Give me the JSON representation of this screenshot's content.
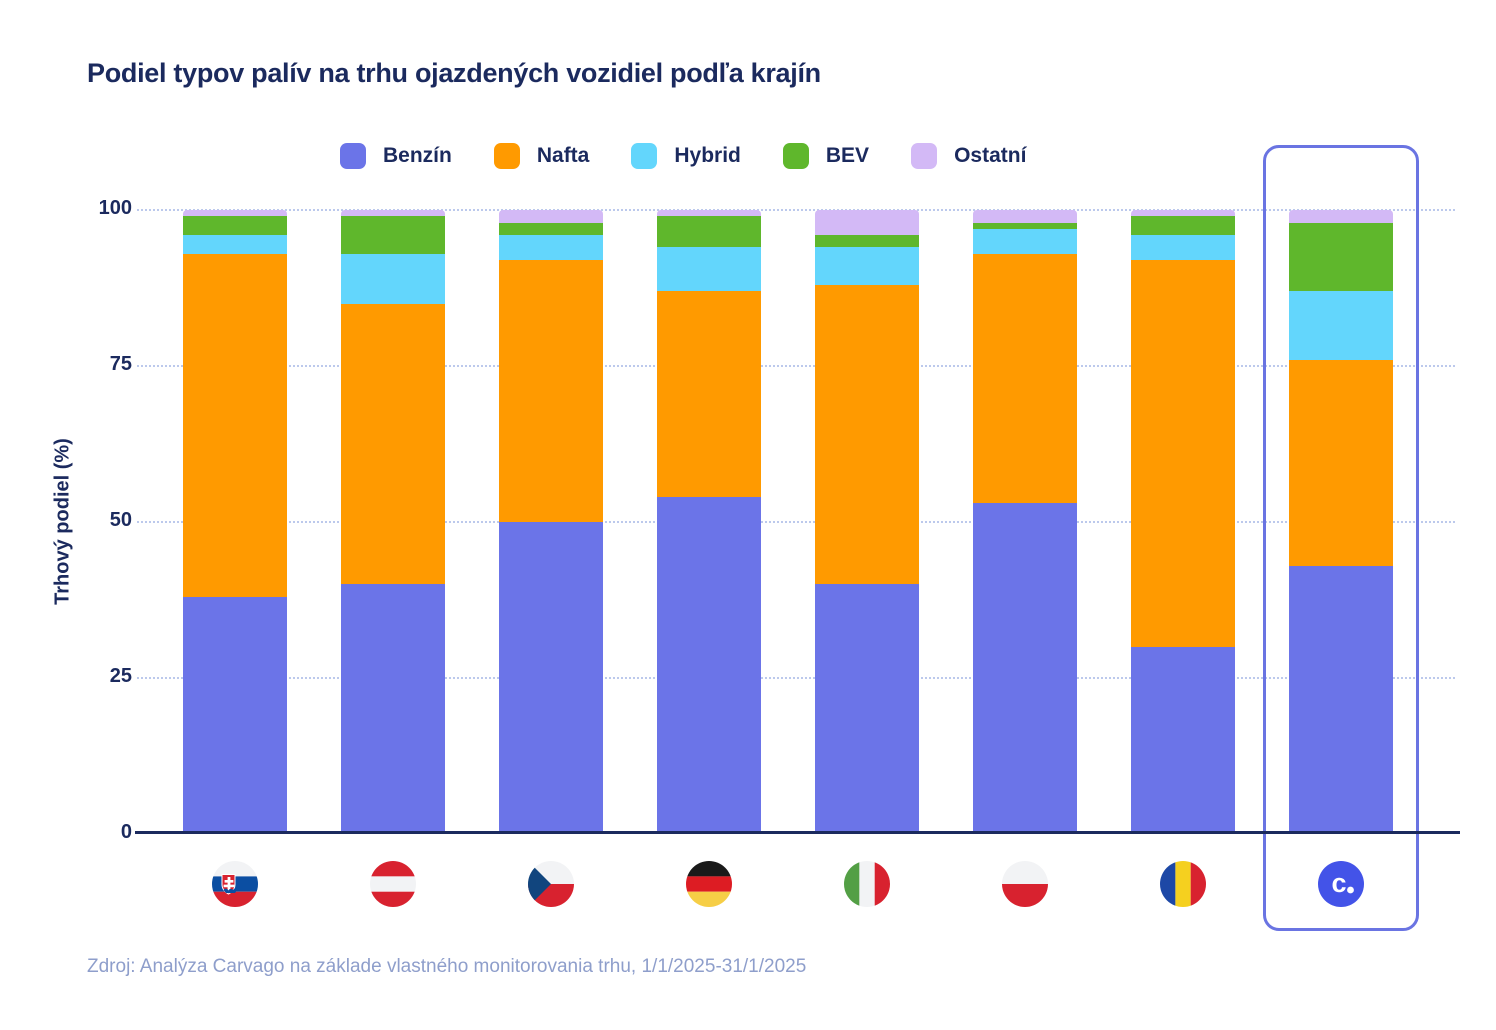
{
  "title": "Podiel typov palív na trhu ojazdených vozidiel podľa krajín",
  "source": "Zdroj: Analýza Carvago na základe vlastného monitorovania trhu, 1/1/2025-31/1/2025",
  "y_axis": {
    "label": "Trhový podiel (%)",
    "ticks": [
      0,
      25,
      50,
      75,
      100
    ]
  },
  "colors": {
    "benzin": "#6b74e8",
    "nafta": "#ff9a00",
    "hybrid": "#63d6fc",
    "bev": "#5fb72c",
    "ostatni": "#d3b9f6",
    "axis_text": "#1b2a5e",
    "gridline": "#bcc9ec",
    "highlight_border": "#6a74e2",
    "source_text": "#8e9ecb",
    "carvago_logo": "#4353e8"
  },
  "chart_data": {
    "type": "bar",
    "stacked": true,
    "title": "Podiel typov palív na trhu ojazdených vozidiel podľa krajín",
    "ylabel": "Trhový podiel (%)",
    "ylim": [
      0,
      100
    ],
    "grid": "horizontal-dotted",
    "legend_position": "top",
    "categories": [
      "Slovensko",
      "Rakúsko",
      "Česko",
      "Nemecko",
      "Taliansko",
      "Poľsko",
      "Rumunsko",
      "Carvago"
    ],
    "category_icons": [
      "flag-sk",
      "flag-at",
      "flag-cz",
      "flag-de",
      "flag-it",
      "flag-pl",
      "flag-ro",
      "carvago-logo"
    ],
    "highlighted_category": "Carvago",
    "series": [
      {
        "name": "Benzín",
        "color": "#6b74e8",
        "values": [
          38,
          40,
          50,
          54,
          40,
          53,
          30,
          43
        ]
      },
      {
        "name": "Nafta",
        "color": "#ff9a00",
        "values": [
          55,
          45,
          42,
          33,
          48,
          40,
          62,
          33
        ]
      },
      {
        "name": "Hybrid",
        "color": "#63d6fc",
        "values": [
          3,
          8,
          4,
          7,
          6,
          4,
          4,
          11
        ]
      },
      {
        "name": "BEV",
        "color": "#5fb72c",
        "values": [
          3,
          6,
          2,
          5,
          2,
          1,
          3,
          11
        ]
      },
      {
        "name": "Ostatní",
        "color": "#d3b9f6",
        "values": [
          1,
          1,
          2,
          1,
          4,
          2,
          1,
          2
        ]
      }
    ]
  }
}
